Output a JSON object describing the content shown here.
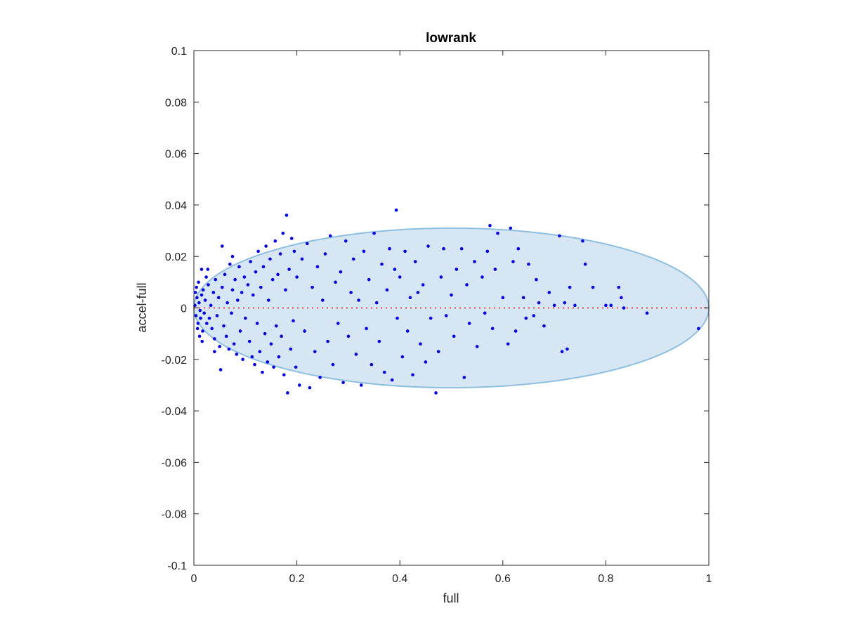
{
  "chart_data": {
    "type": "scatter",
    "title": "lowrank",
    "xlabel": "full",
    "ylabel": "accel-full",
    "xlim": [
      0,
      1
    ],
    "ylim": [
      -0.1,
      0.1
    ],
    "xticks": [
      0,
      0.2,
      0.4,
      0.6,
      0.8,
      1
    ],
    "xtick_labels": [
      "0",
      "0.2",
      "0.4",
      "0.6",
      "0.8",
      "1"
    ],
    "yticks": [
      -0.1,
      -0.08,
      -0.06,
      -0.04,
      -0.02,
      0,
      0.02,
      0.04,
      0.06,
      0.08,
      0.1
    ],
    "ytick_labels": [
      "-0.1",
      "-0.08",
      "-0.06",
      "-0.04",
      "-0.02",
      "0",
      "0.02",
      "0.04",
      "0.06",
      "0.08",
      "0.1"
    ],
    "grid": false,
    "box": true,
    "colors": {
      "points": "#0000ff",
      "zero_line": "#ff3b3b",
      "ellipse_fill": "#d6e6f3",
      "ellipse_edge": "#8fbfdf"
    },
    "reference_line": {
      "y": 0,
      "style": "dotted"
    },
    "ellipse": {
      "center": [
        0.5,
        0
      ],
      "rx": 0.5,
      "ry": 0.031
    },
    "series": [
      {
        "values": [
          [
            0.002,
            0.001
          ],
          [
            0.004,
            -0.003
          ],
          [
            0.006,
            0.004
          ],
          [
            0.003,
            0.006
          ],
          [
            0.008,
            -0.006
          ],
          [
            0.01,
            0.002
          ],
          [
            0.012,
            -0.001
          ],
          [
            0.005,
            0.008
          ],
          [
            0.007,
            -0.008
          ],
          [
            0.015,
            0.005
          ],
          [
            0.013,
            -0.004
          ],
          [
            0.018,
            0.007
          ],
          [
            0.02,
            -0.002
          ],
          [
            0.017,
            -0.009
          ],
          [
            0.022,
            0.003
          ],
          [
            0.025,
            -0.006
          ],
          [
            0.009,
            0.01
          ],
          [
            0.011,
            -0.011
          ],
          [
            0.028,
            0.009
          ],
          [
            0.03,
            -0.004
          ],
          [
            0.024,
            0.012
          ],
          [
            0.033,
            0.001
          ],
          [
            0.035,
            -0.008
          ],
          [
            0.038,
            0.006
          ],
          [
            0.04,
            -0.012
          ],
          [
            0.042,
            0.011
          ],
          [
            0.016,
            -0.013
          ],
          [
            0.045,
            -0.003
          ],
          [
            0.048,
            0.004
          ],
          [
            0.05,
            -0.015
          ],
          [
            0.027,
            0.015
          ],
          [
            0.055,
            0.008
          ],
          [
            0.058,
            -0.007
          ],
          [
            0.06,
            0.013
          ],
          [
            0.063,
            -0.011
          ],
          [
            0.065,
            0.002
          ],
          [
            0.068,
            -0.016
          ],
          [
            0.07,
            0.017
          ],
          [
            0.073,
            -0.002
          ],
          [
            0.075,
            0.007
          ],
          [
            0.078,
            -0.014
          ],
          [
            0.08,
            0.011
          ],
          [
            0.083,
            -0.018
          ],
          [
            0.085,
            0.003
          ],
          [
            0.088,
            0.016
          ],
          [
            0.09,
            -0.009
          ],
          [
            0.093,
            0.006
          ],
          [
            0.095,
            -0.02
          ],
          [
            0.098,
            0.012
          ],
          [
            0.1,
            -0.004
          ],
          [
            0.015,
            0.015
          ],
          [
            0.04,
            -0.017
          ],
          [
            0.055,
            0.024
          ],
          [
            0.052,
            -0.024
          ],
          [
            0.075,
            0.02
          ],
          [
            0.105,
            0.009
          ],
          [
            0.108,
            -0.013
          ],
          [
            0.11,
            0.018
          ],
          [
            0.113,
            -0.019
          ],
          [
            0.115,
            0.005
          ],
          [
            0.118,
            -0.022
          ],
          [
            0.12,
            0.014
          ],
          [
            0.123,
            -0.006
          ],
          [
            0.125,
            0.022
          ],
          [
            0.128,
            -0.017
          ],
          [
            0.13,
            0.008
          ],
          [
            0.133,
            -0.025
          ],
          [
            0.135,
            0.016
          ],
          [
            0.138,
            -0.01
          ],
          [
            0.14,
            0.024
          ],
          [
            0.143,
            -0.021
          ],
          [
            0.145,
            0.003
          ],
          [
            0.148,
            0.019
          ],
          [
            0.15,
            -0.014
          ],
          [
            0.153,
            0.011
          ],
          [
            0.155,
            -0.023
          ],
          [
            0.158,
            0.026
          ],
          [
            0.16,
            -0.007
          ],
          [
            0.163,
            0.013
          ],
          [
            0.165,
            -0.019
          ],
          [
            0.168,
            0.021
          ],
          [
            0.17,
            -0.011
          ],
          [
            0.173,
            0.029
          ],
          [
            0.175,
            -0.026
          ],
          [
            0.178,
            0.007
          ],
          [
            0.18,
            0.036
          ],
          [
            0.182,
            -0.033
          ],
          [
            0.185,
            0.015
          ],
          [
            0.188,
            -0.016
          ],
          [
            0.19,
            0.027
          ],
          [
            0.193,
            -0.005
          ],
          [
            0.195,
            0.022
          ],
          [
            0.198,
            -0.023
          ],
          [
            0.2,
            0.012
          ],
          [
            0.205,
            -0.03
          ],
          [
            0.21,
            0.019
          ],
          [
            0.215,
            -0.009
          ],
          [
            0.22,
            0.025
          ],
          [
            0.225,
            -0.031
          ],
          [
            0.23,
            0.008
          ],
          [
            0.235,
            -0.017
          ],
          [
            0.24,
            0.016
          ],
          [
            0.245,
            -0.027
          ],
          [
            0.25,
            0.003
          ],
          [
            0.255,
            0.021
          ],
          [
            0.26,
            -0.013
          ],
          [
            0.265,
            0.028
          ],
          [
            0.27,
            -0.022
          ],
          [
            0.275,
            0.01
          ],
          [
            0.28,
            -0.006
          ],
          [
            0.285,
            0.014
          ],
          [
            0.29,
            -0.029
          ],
          [
            0.295,
            0.026
          ],
          [
            0.3,
            -0.011
          ],
          [
            0.305,
            0.006
          ],
          [
            0.31,
            0.019
          ],
          [
            0.315,
            -0.018
          ],
          [
            0.32,
            0.003
          ],
          [
            0.325,
            -0.03
          ],
          [
            0.33,
            0.022
          ],
          [
            0.335,
            -0.008
          ],
          [
            0.34,
            0.011
          ],
          [
            0.345,
            -0.022
          ],
          [
            0.35,
            0.029
          ],
          [
            0.355,
            0.002
          ],
          [
            0.36,
            -0.013
          ],
          [
            0.365,
            0.017
          ],
          [
            0.37,
            -0.025
          ],
          [
            0.375,
            0.007
          ],
          [
            0.38,
            0.023
          ],
          [
            0.385,
            -0.028
          ],
          [
            0.39,
            0.015
          ],
          [
            0.393,
            0.038
          ],
          [
            0.395,
            -0.004
          ],
          [
            0.4,
            0.012
          ],
          [
            0.405,
            -0.019
          ],
          [
            0.41,
            0.022
          ],
          [
            0.415,
            -0.009
          ],
          [
            0.42,
            0.004
          ],
          [
            0.425,
            -0.026
          ],
          [
            0.43,
            0.018
          ],
          [
            0.435,
            0.006
          ],
          [
            0.44,
            -0.014
          ],
          [
            0.445,
            0.009
          ],
          [
            0.45,
            -0.021
          ],
          [
            0.455,
            0.024
          ],
          [
            0.46,
            -0.004
          ],
          [
            0.47,
            -0.033
          ],
          [
            0.475,
            -0.017
          ],
          [
            0.48,
            0.012
          ],
          [
            0.485,
            0.023
          ],
          [
            0.49,
            -0.003
          ],
          [
            0.5,
            0.005
          ],
          [
            0.505,
            -0.011
          ],
          [
            0.51,
            0.015
          ],
          [
            0.52,
            0.023
          ],
          [
            0.525,
            -0.027
          ],
          [
            0.53,
            0.009
          ],
          [
            0.535,
            -0.006
          ],
          [
            0.545,
            0.018
          ],
          [
            0.55,
            -0.015
          ],
          [
            0.56,
            0.012
          ],
          [
            0.565,
            -0.002
          ],
          [
            0.57,
            0.022
          ],
          [
            0.575,
            0.032
          ],
          [
            0.58,
            -0.008
          ],
          [
            0.585,
            0.015
          ],
          [
            0.59,
            0.029
          ],
          [
            0.6,
            0.004
          ],
          [
            0.61,
            -0.014
          ],
          [
            0.615,
            0.031
          ],
          [
            0.62,
            0.018
          ],
          [
            0.625,
            -0.009
          ],
          [
            0.63,
            0.023
          ],
          [
            0.64,
            0.004
          ],
          [
            0.645,
            -0.004
          ],
          [
            0.65,
            0.017
          ],
          [
            0.66,
            -0.003
          ],
          [
            0.665,
            0.011
          ],
          [
            0.67,
            0.002
          ],
          [
            0.68,
            -0.007
          ],
          [
            0.69,
            0.006
          ],
          [
            0.7,
            0.001
          ],
          [
            0.71,
            0.028
          ],
          [
            0.715,
            -0.017
          ],
          [
            0.72,
            0.002
          ],
          [
            0.725,
            -0.016
          ],
          [
            0.73,
            0.008
          ],
          [
            0.74,
            0.001
          ],
          [
            0.755,
            0.026
          ],
          [
            0.76,
            0.017
          ],
          [
            0.775,
            0.008
          ],
          [
            0.8,
            0.001
          ],
          [
            0.81,
            0.001
          ],
          [
            0.825,
            0.008
          ],
          [
            0.83,
            0.004
          ],
          [
            0.835,
            0.0
          ],
          [
            0.88,
            -0.002
          ],
          [
            0.98,
            -0.008
          ]
        ]
      }
    ]
  }
}
